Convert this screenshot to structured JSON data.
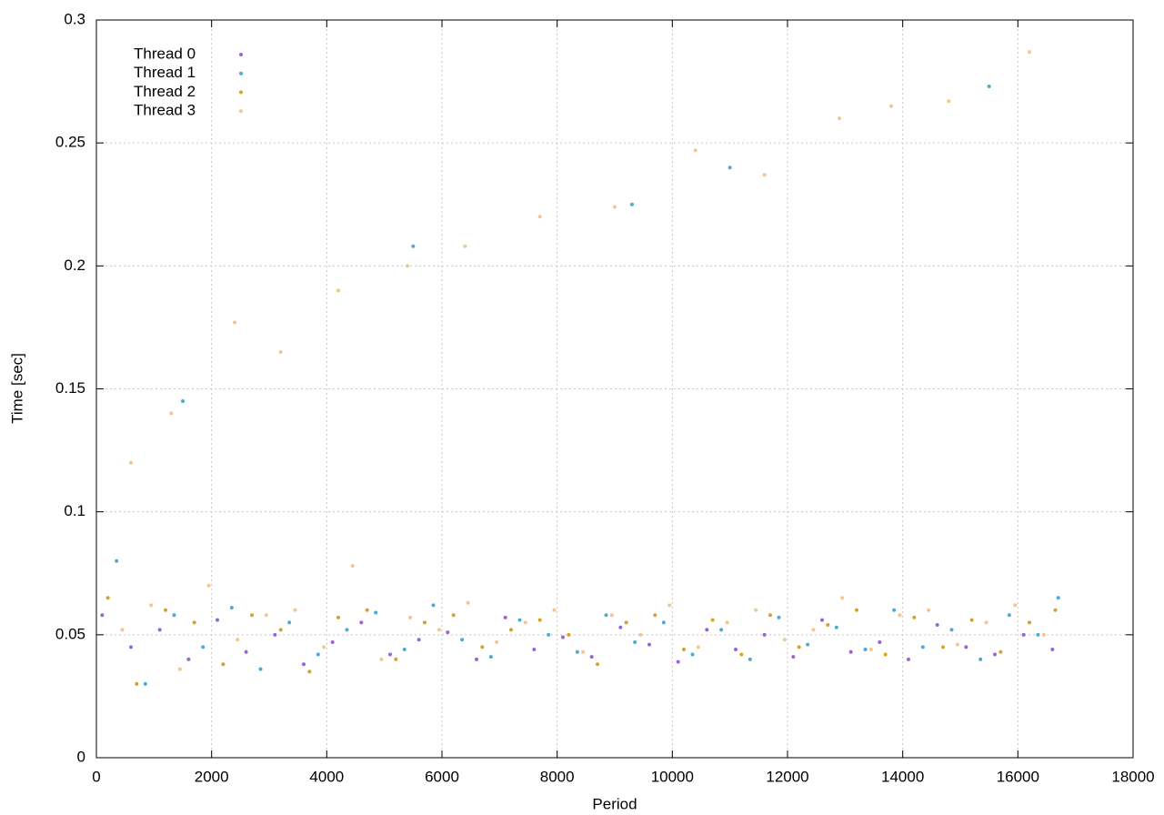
{
  "chart_data": {
    "type": "scatter",
    "x_label": "Period",
    "y_label": "Time [sec]",
    "xlim": [
      0,
      18000
    ],
    "xticks": [
      0,
      2000,
      4000,
      6000,
      8000,
      10000,
      12000,
      14000,
      16000,
      18000
    ],
    "ylim": [
      0,
      0.3
    ],
    "yticks": [
      0,
      0.05,
      0.1,
      0.15,
      0.2,
      0.25,
      0.3
    ],
    "grid": true,
    "legend": "upper-left",
    "series": [
      {
        "name": "Thread 0",
        "color": "#9b63d8",
        "x": [
          100,
          600,
          1100,
          1600,
          2100,
          2600,
          3100,
          3600,
          4100,
          4600,
          5100,
          5600,
          6100,
          6600,
          7100,
          7600,
          8100,
          8600,
          9100,
          9600,
          10100,
          10600,
          11100,
          11600,
          12100,
          12600,
          13100,
          13600,
          14100,
          14600,
          15100,
          15600,
          16100,
          16600
        ],
        "values": [
          0.058,
          0.045,
          0.052,
          0.04,
          0.056,
          0.043,
          0.05,
          0.038,
          0.047,
          0.055,
          0.042,
          0.048,
          0.051,
          0.04,
          0.057,
          0.044,
          0.049,
          0.041,
          0.053,
          0.046,
          0.039,
          0.052,
          0.044,
          0.05,
          0.041,
          0.056,
          0.043,
          0.047,
          0.04,
          0.054,
          0.045,
          0.042,
          0.05,
          0.044
        ]
      },
      {
        "name": "Thread 1",
        "color": "#4eaad2",
        "x": [
          350,
          850,
          1350,
          1850,
          2350,
          2850,
          3350,
          3850,
          4350,
          4850,
          5350,
          5850,
          6350,
          6850,
          7350,
          7850,
          8350,
          8850,
          9350,
          9850,
          10350,
          10850,
          11350,
          11850,
          12350,
          12850,
          13350,
          13850,
          14350,
          14850,
          15350,
          15850,
          16350,
          16700,
          1500,
          5500,
          9300,
          11000,
          15500
        ],
        "values": [
          0.08,
          0.03,
          0.058,
          0.045,
          0.061,
          0.036,
          0.055,
          0.042,
          0.052,
          0.059,
          0.044,
          0.062,
          0.048,
          0.041,
          0.056,
          0.05,
          0.043,
          0.058,
          0.047,
          0.055,
          0.042,
          0.052,
          0.04,
          0.057,
          0.046,
          0.053,
          0.044,
          0.06,
          0.045,
          0.052,
          0.04,
          0.058,
          0.05,
          0.065,
          0.145,
          0.208,
          0.225,
          0.24,
          0.273
        ]
      },
      {
        "name": "Thread 2",
        "color": "#d6a32a",
        "x": [
          200,
          700,
          1200,
          1700,
          2200,
          2700,
          3200,
          3700,
          4200,
          4700,
          5200,
          5700,
          6200,
          6700,
          7200,
          7700,
          8200,
          8700,
          9200,
          9700,
          10200,
          10700,
          11200,
          11700,
          12200,
          12700,
          13200,
          13700,
          14200,
          14700,
          15200,
          15700,
          16200,
          16650
        ],
        "values": [
          0.065,
          0.03,
          0.06,
          0.055,
          0.038,
          0.058,
          0.052,
          0.035,
          0.057,
          0.06,
          0.04,
          0.055,
          0.058,
          0.045,
          0.052,
          0.056,
          0.05,
          0.038,
          0.055,
          0.058,
          0.044,
          0.056,
          0.042,
          0.058,
          0.045,
          0.054,
          0.06,
          0.042,
          0.057,
          0.045,
          0.056,
          0.043,
          0.055,
          0.06
        ]
      },
      {
        "name": "Thread 3",
        "color": "#f3c68c",
        "x": [
          450,
          950,
          1450,
          1950,
          2450,
          2950,
          3450,
          3950,
          4450,
          4950,
          5450,
          5950,
          6450,
          6950,
          7450,
          7950,
          8450,
          8950,
          9450,
          9950,
          10450,
          10950,
          11450,
          11950,
          12450,
          12950,
          13450,
          13950,
          14450,
          14950,
          15450,
          15950,
          16450,
          600,
          1300,
          2400,
          3200,
          4200,
          5400,
          6400,
          7700,
          9000,
          10400,
          11600,
          12900,
          13800,
          14800,
          16200
        ],
        "values": [
          0.052,
          0.062,
          0.036,
          0.07,
          0.048,
          0.058,
          0.06,
          0.045,
          0.078,
          0.04,
          0.057,
          0.052,
          0.063,
          0.047,
          0.055,
          0.06,
          0.043,
          0.058,
          0.05,
          0.062,
          0.045,
          0.055,
          0.06,
          0.048,
          0.052,
          0.065,
          0.044,
          0.058,
          0.06,
          0.046,
          0.055,
          0.062,
          0.05,
          0.12,
          0.14,
          0.177,
          0.165,
          0.19,
          0.2,
          0.208,
          0.22,
          0.224,
          0.247,
          0.237,
          0.26,
          0.265,
          0.267,
          0.287
        ]
      }
    ]
  }
}
